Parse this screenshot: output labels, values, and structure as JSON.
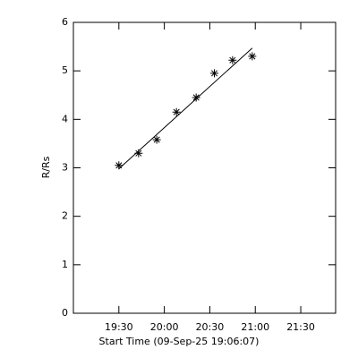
{
  "chart_data": {
    "type": "scatter",
    "x_label": "Start Time (09-Sep-25 19:06:07)",
    "y_label": "R/Rs",
    "x": [
      "19:30",
      "19:43",
      "19:55",
      "20:08",
      "20:21",
      "20:33",
      "20:45",
      "20:58"
    ],
    "values": [
      3.05,
      3.3,
      3.58,
      4.15,
      4.45,
      4.95,
      5.22,
      5.3
    ],
    "marker": "asterisk",
    "color": "#000000",
    "fit": {
      "x": [
        "19:30",
        "20:58"
      ],
      "values": [
        2.98,
        5.47
      ]
    },
    "xlim": [
      "19:00",
      "21:53"
    ],
    "xticks": [
      "19:30",
      "20:00",
      "20:30",
      "21:00",
      "21:30"
    ],
    "ylim": [
      0,
      6
    ],
    "yticks": [
      0,
      1,
      2,
      3,
      4,
      5,
      6
    ]
  }
}
